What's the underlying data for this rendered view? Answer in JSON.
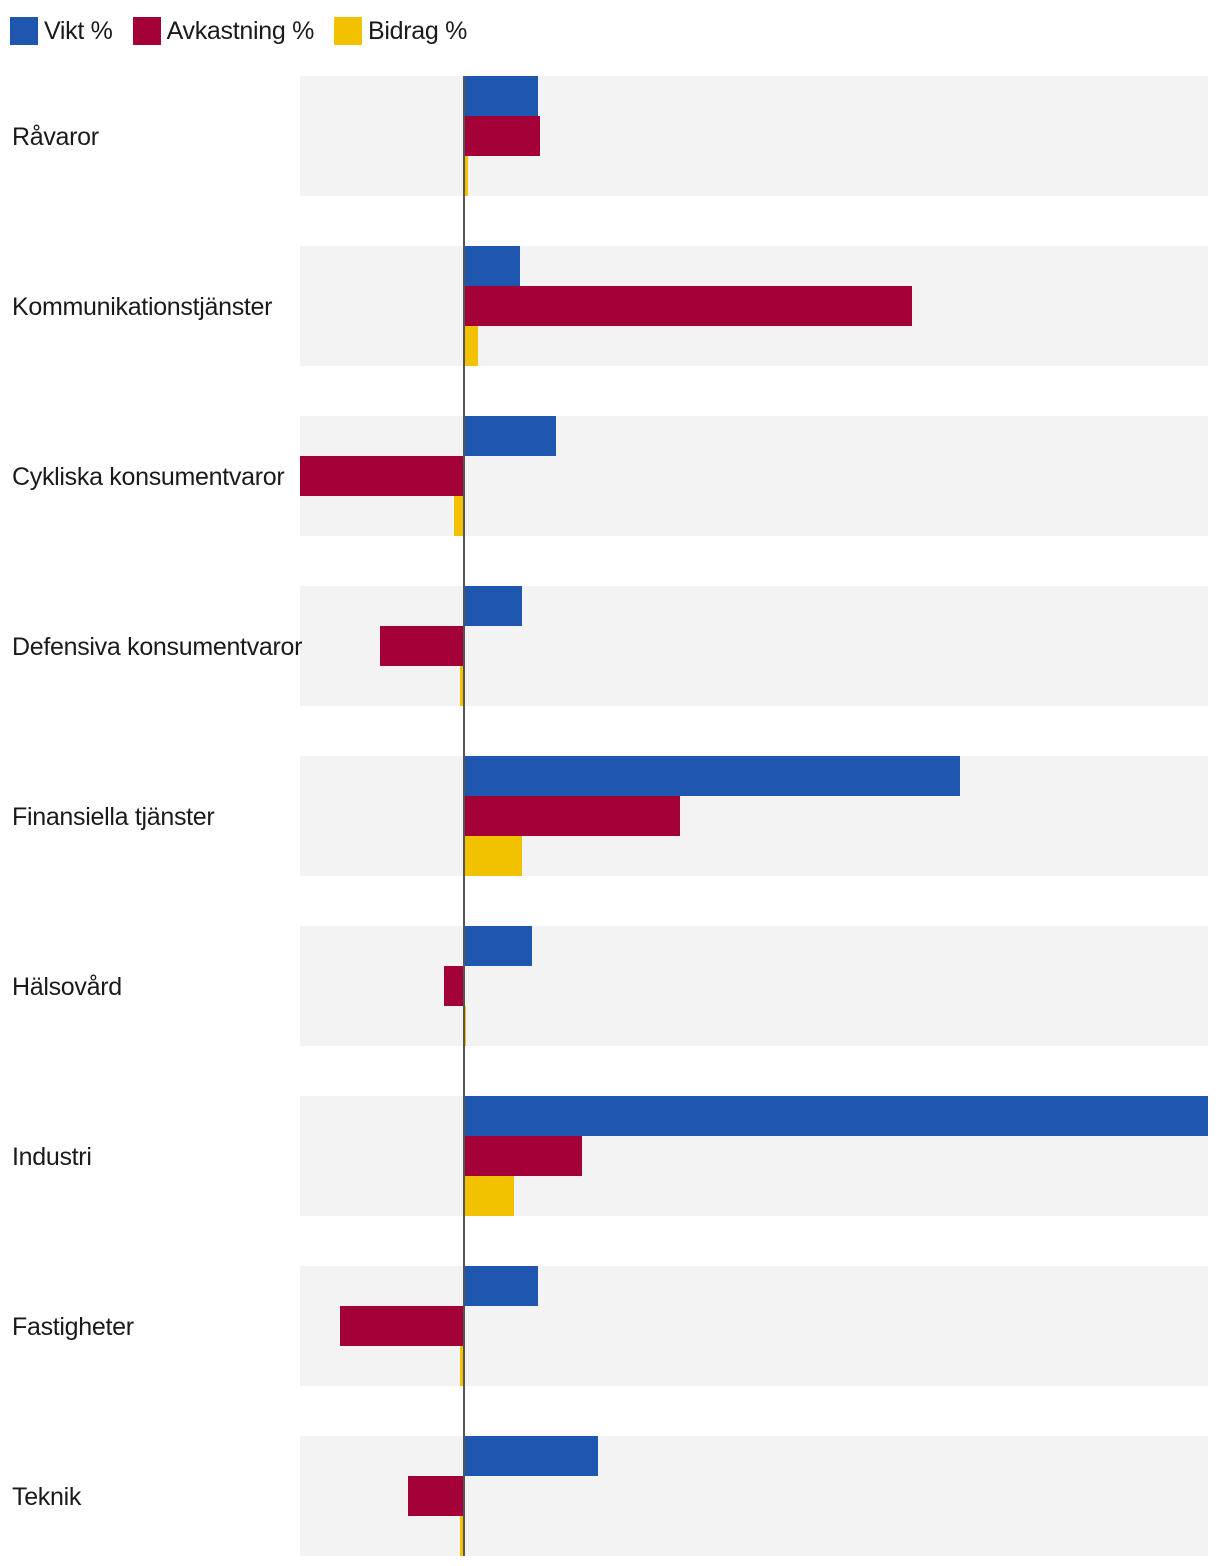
{
  "chart_data": {
    "type": "bar",
    "orientation": "horizontal",
    "title": "",
    "xlabel": "",
    "ylabel": "",
    "categories": [
      "Råvaror",
      "Kommunikationstjänster",
      "Cykliska konsumentvaror",
      "Defensiva konsumentvaror",
      "Finansiella tjänster",
      "Hälsovård",
      "Industri",
      "Fastigheter",
      "Teknik"
    ],
    "series": [
      {
        "name": "Vikt %",
        "color": "#1f56b0",
        "values": [
          3.7,
          2.8,
          4.6,
          2.9,
          24.8,
          3.4,
          37.2,
          3.7,
          6.7
        ]
      },
      {
        "name": "Avkastning %",
        "color": "#a20036",
        "values": [
          3.8,
          22.4,
          -8.2,
          -4.2,
          10.8,
          -1.0,
          5.9,
          -6.2,
          -2.8
        ]
      },
      {
        "name": "Bidrag %",
        "color": "#f2c200",
        "values": [
          0.2,
          0.7,
          -0.5,
          -0.2,
          2.9,
          0.1,
          2.5,
          -0.2,
          -0.2
        ]
      }
    ],
    "xlim": [
      -8.2,
      37.2
    ],
    "grid": false,
    "legend": "top-left",
    "zero_line_color": "#555555",
    "band_color": "#f3f3f3"
  }
}
